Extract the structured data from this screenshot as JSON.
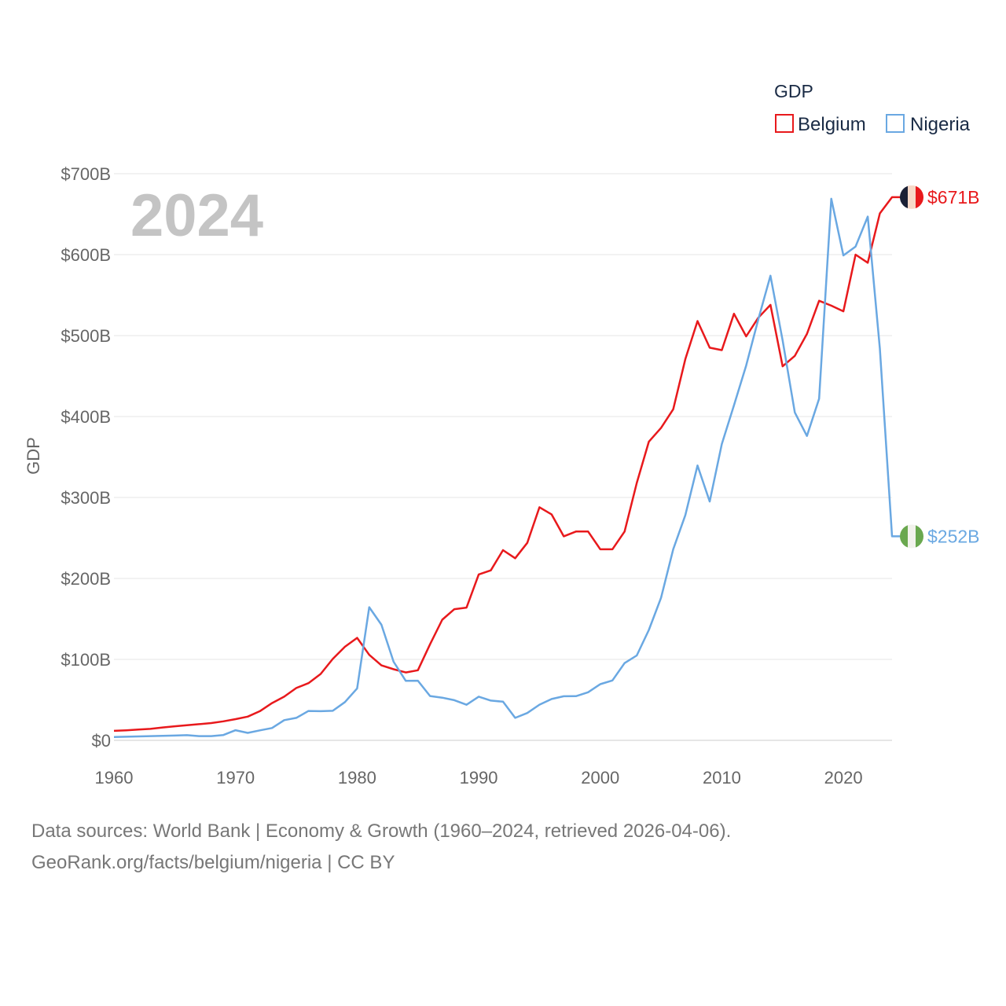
{
  "colors": {
    "belgium": "#e8191c",
    "nigeria": "#6aa8e2",
    "grid": "#e6e6e6",
    "year": "#c4c4c4"
  },
  "chart_data": {
    "type": "line",
    "title": "GDP",
    "year_label": "2024",
    "ylabel": "GDP",
    "xlabel": "",
    "xlim": [
      1960,
      2024
    ],
    "ylim": [
      0,
      700
    ],
    "x_ticks": [
      "1960",
      "1970",
      "1980",
      "1990",
      "2000",
      "2010",
      "2020"
    ],
    "y_ticks": [
      "$0",
      "$100B",
      "$200B",
      "$300B",
      "$400B",
      "$500B",
      "$600B",
      "$700B"
    ],
    "unit": "billion USD",
    "x": [
      1960,
      1961,
      1962,
      1963,
      1964,
      1965,
      1966,
      1967,
      1968,
      1969,
      1970,
      1971,
      1972,
      1973,
      1974,
      1975,
      1976,
      1977,
      1978,
      1979,
      1980,
      1981,
      1982,
      1983,
      1984,
      1985,
      1986,
      1987,
      1988,
      1989,
      1990,
      1991,
      1992,
      1993,
      1994,
      1995,
      1996,
      1997,
      1998,
      1999,
      2000,
      2001,
      2002,
      2003,
      2004,
      2005,
      2006,
      2007,
      2008,
      2009,
      2010,
      2011,
      2012,
      2013,
      2014,
      2015,
      2016,
      2017,
      2018,
      2019,
      2020,
      2021,
      2022,
      2023,
      2024
    ],
    "series": [
      {
        "name": "Belgium",
        "color_key": "belgium",
        "flag": "belgium-flag-icon",
        "end_label": "$671B",
        "values": [
          11.7,
          12.4,
          13.3,
          14.2,
          15.9,
          17.4,
          18.7,
          20.0,
          21.4,
          23.5,
          26.2,
          29.3,
          36.0,
          46.0,
          54.0,
          64.7,
          70.7,
          82.0,
          100.6,
          115.6,
          126.6,
          105.6,
          92.6,
          87.9,
          83.9,
          86.6,
          118.7,
          149.0,
          162.0,
          164.0,
          205.0,
          210.0,
          235.0,
          225.0,
          244.0,
          288.0,
          279.0,
          252.0,
          258.0,
          258.0,
          236.0,
          236.0,
          258.0,
          318.0,
          369.0,
          386.0,
          409.0,
          471.0,
          518.0,
          485.0,
          482.0,
          527.0,
          499.0,
          522.0,
          538.0,
          462.0,
          475.0,
          502.0,
          543.0,
          537.0,
          530.0,
          600.0,
          590.0,
          651.0,
          671.0
        ]
      },
      {
        "name": "Nigeria",
        "color_key": "nigeria",
        "flag": "nigeria-flag-icon",
        "end_label": "$252B",
        "values": [
          4.2,
          4.5,
          4.9,
          5.2,
          5.5,
          5.9,
          6.4,
          5.2,
          5.2,
          6.6,
          12.5,
          9.2,
          12.3,
          15.2,
          25.0,
          27.8,
          36.3,
          36.0,
          36.5,
          47.3,
          64.2,
          164.5,
          142.8,
          97.1,
          73.5,
          73.7,
          54.8,
          52.7,
          49.6,
          44.0,
          54.0,
          49.1,
          47.8,
          27.8,
          33.8,
          44.1,
          51.1,
          54.5,
          54.6,
          59.4,
          69.4,
          74.0,
          95.4,
          104.9,
          136.4,
          176.1,
          236.1,
          278.3,
          339.5,
          295.0,
          366.0,
          414.0,
          463.0,
          520.0,
          574.0,
          494.0,
          405.0,
          376.0,
          422.0,
          669.0,
          599.0,
          610.0,
          647.0,
          484.0,
          252.0
        ]
      }
    ],
    "legend": {
      "title": "GDP",
      "position": "top-right"
    }
  },
  "footer": {
    "line1": "Data sources: World Bank | Economy & Growth (1960–2024, retrieved 2026-04-06).",
    "line2": "GeoRank.org/facts/belgium/nigeria | CC BY"
  }
}
